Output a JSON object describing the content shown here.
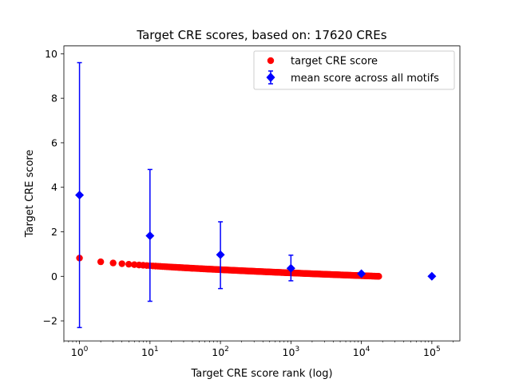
{
  "chart_data": {
    "type": "scatter",
    "title": "Target CRE scores, based on: 17620 CREs",
    "xlabel": "Target CRE score rank (log)",
    "ylabel": "Target CRE score",
    "xscale": "log",
    "xlim": [
      0.6,
      250000
    ],
    "ylim": [
      -2.9,
      10.35
    ],
    "xticks": [
      {
        "base": "10",
        "exp": "0",
        "value": 1
      },
      {
        "base": "10",
        "exp": "1",
        "value": 10
      },
      {
        "base": "10",
        "exp": "2",
        "value": 100
      },
      {
        "base": "10",
        "exp": "3",
        "value": 1000
      },
      {
        "base": "10",
        "exp": "4",
        "value": 10000
      },
      {
        "base": "10",
        "exp": "5",
        "value": 100000
      }
    ],
    "yticks": [
      {
        "label": "−2",
        "value": -2
      },
      {
        "label": "0",
        "value": 0
      },
      {
        "label": "2",
        "value": 2
      },
      {
        "label": "4",
        "value": 4
      },
      {
        "label": "6",
        "value": 6
      },
      {
        "label": "8",
        "value": 8
      },
      {
        "label": "10",
        "value": 10
      }
    ],
    "legend_position": "top-right",
    "series": [
      {
        "name": "target CRE score",
        "marker": "circle",
        "color": "#ff0000",
        "count": 17620,
        "start_value": 0.82,
        "end_value": 0.0
      },
      {
        "name": "mean score across all motifs",
        "marker": "diamond",
        "color": "#0000ff",
        "points": [
          {
            "x": 1,
            "y": 3.65,
            "yerr_low": -2.3,
            "yerr_high": 9.6
          },
          {
            "x": 10,
            "y": 1.82,
            "yerr_low": -1.12,
            "yerr_high": 4.8
          },
          {
            "x": 100,
            "y": 0.97,
            "yerr_low": -0.55,
            "yerr_high": 2.45
          },
          {
            "x": 1000,
            "y": 0.36,
            "yerr_low": -0.2,
            "yerr_high": 0.95
          },
          {
            "x": 10000,
            "y": 0.12,
            "yerr_low": 0.08,
            "yerr_high": 0.16
          },
          {
            "x": 100000,
            "y": 0.0,
            "yerr_low": 0.0,
            "yerr_high": 0.0
          }
        ]
      }
    ]
  }
}
